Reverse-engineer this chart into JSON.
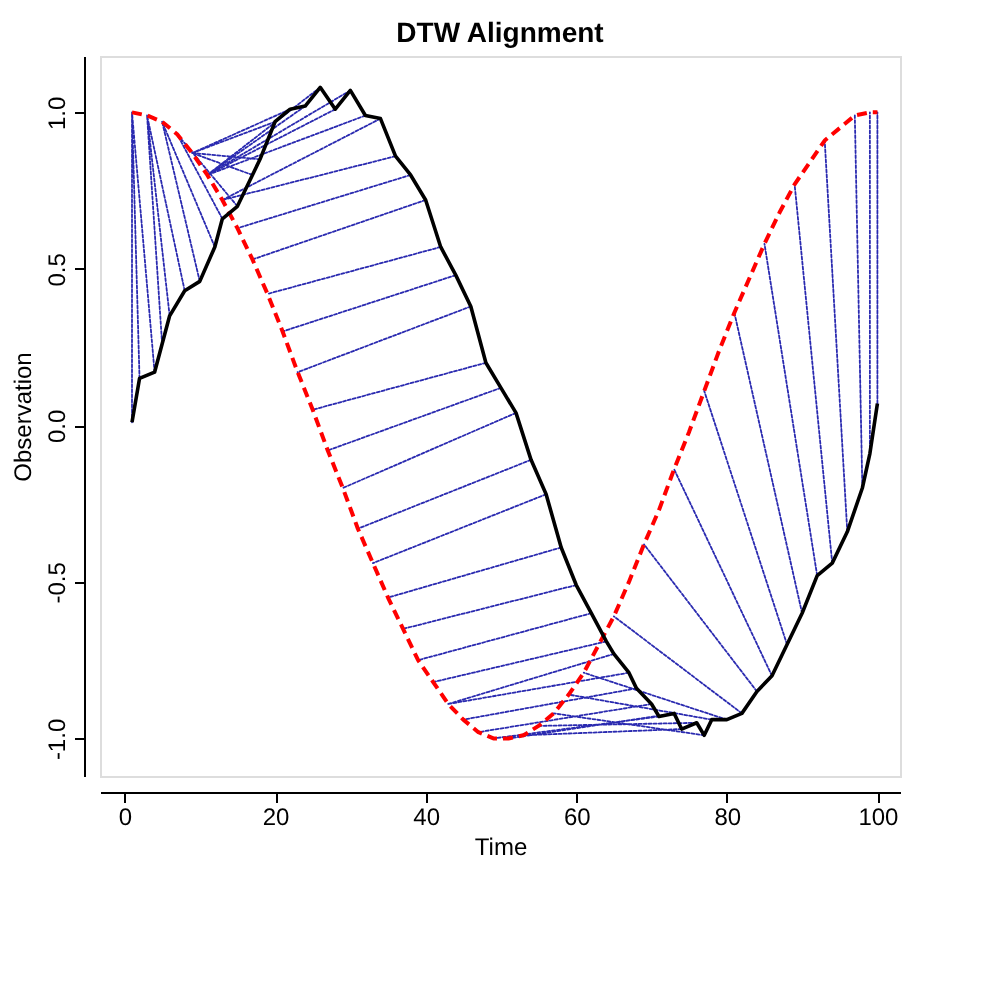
{
  "chart_data": {
    "type": "line",
    "title": "DTW Alignment",
    "xlabel": "Time",
    "ylabel": "Observation",
    "xlim": [
      -3.25,
      103
    ],
    "xticks": [
      0,
      20,
      40,
      60,
      80,
      100
    ],
    "ylim": [
      -1.12,
      1.18
    ],
    "yticks": [
      {
        "value": -1,
        "label": "-1.0"
      },
      {
        "value": -0.5,
        "label": "-0.5"
      },
      {
        "value": 0,
        "label": "0.0"
      },
      {
        "value": 0.5,
        "label": "0.5"
      },
      {
        "value": 1,
        "label": "1.0"
      }
    ],
    "grid": false,
    "series": [
      {
        "line_style": "dotted",
        "color": "#2a2ab0",
        "x": [
          1,
          1,
          null,
          2,
          1,
          null,
          4,
          1,
          null,
          5,
          3,
          null,
          6,
          3,
          null,
          8,
          3,
          null,
          10,
          5,
          null,
          12,
          5,
          null,
          13,
          7,
          null,
          15,
          7,
          null,
          17,
          9,
          null,
          18,
          9,
          null,
          20,
          9,
          null,
          22,
          9,
          null,
          24,
          11,
          null,
          26,
          11,
          null,
          28,
          11,
          null,
          30,
          11,
          null,
          32,
          11,
          null,
          34,
          13,
          null,
          36,
          13,
          null,
          38,
          15,
          null,
          40,
          17,
          null,
          42,
          19,
          null,
          44,
          21,
          null,
          46,
          23,
          null,
          48,
          25,
          null,
          50,
          27,
          null,
          52,
          29,
          null,
          54,
          31,
          null,
          56,
          33,
          null,
          58,
          35,
          null,
          60,
          37,
          null,
          62,
          39,
          null,
          64,
          41,
          null,
          65,
          43,
          null,
          67,
          43,
          null,
          68,
          45,
          null,
          70,
          47,
          null,
          71,
          49,
          null,
          73,
          51,
          null,
          74,
          53,
          null,
          76,
          55,
          null,
          77,
          57,
          null,
          78,
          59,
          null,
          80,
          61,
          null,
          82,
          65,
          null,
          84,
          69,
          null,
          86,
          73,
          null,
          88,
          77,
          null,
          90,
          81,
          null,
          92,
          85,
          null,
          94,
          89,
          null,
          96,
          93,
          null,
          98,
          97,
          null,
          99,
          99,
          null,
          100,
          100
        ],
        "values": [
          0.01,
          1.0,
          null,
          0.15,
          1.0,
          null,
          0.17,
          1.0,
          null,
          0.26,
          0.99,
          null,
          0.35,
          0.99,
          null,
          0.43,
          0.99,
          null,
          0.46,
          0.97,
          null,
          0.57,
          0.97,
          null,
          0.66,
          0.93,
          null,
          0.7,
          0.93,
          null,
          0.8,
          0.87,
          null,
          0.85,
          0.87,
          null,
          0.97,
          0.87,
          null,
          1.01,
          0.87,
          null,
          1.02,
          0.8,
          null,
          1.08,
          0.8,
          null,
          1.01,
          0.8,
          null,
          1.07,
          0.8,
          null,
          0.99,
          0.8,
          null,
          0.98,
          0.72,
          null,
          0.86,
          0.72,
          null,
          0.8,
          0.63,
          null,
          0.72,
          0.53,
          null,
          0.57,
          0.42,
          null,
          0.48,
          0.3,
          null,
          0.38,
          0.17,
          null,
          0.2,
          0.05,
          null,
          0.12,
          -0.08,
          null,
          0.04,
          -0.2,
          null,
          -0.11,
          -0.33,
          null,
          -0.22,
          -0.44,
          null,
          -0.39,
          -0.55,
          null,
          -0.51,
          -0.65,
          null,
          -0.6,
          -0.75,
          null,
          -0.69,
          -0.82,
          null,
          -0.73,
          -0.89,
          null,
          -0.79,
          -0.89,
          null,
          -0.84,
          -0.94,
          null,
          -0.89,
          -0.98,
          null,
          -0.93,
          -1.0,
          null,
          -0.92,
          -1.0,
          null,
          -0.97,
          -0.99,
          null,
          -0.95,
          -0.96,
          null,
          -0.99,
          -0.92,
          null,
          -0.94,
          -0.86,
          null,
          -0.94,
          -0.79,
          null,
          -0.92,
          -0.61,
          null,
          -0.85,
          -0.38,
          null,
          -0.8,
          -0.14,
          null,
          -0.7,
          0.11,
          null,
          -0.6,
          0.36,
          null,
          -0.48,
          0.58,
          null,
          -0.44,
          0.77,
          null,
          -0.34,
          0.91,
          null,
          -0.2,
          0.99,
          null,
          -0.09,
          1.0,
          null,
          0.07,
          1.0
        ]
      },
      {
        "line_style": "dashed",
        "color": "#ff0000",
        "x": [
          1,
          3,
          5,
          7,
          9,
          11,
          13,
          15,
          17,
          19,
          21,
          23,
          25,
          27,
          29,
          31,
          33,
          35,
          37,
          39,
          41,
          43,
          45,
          47,
          49,
          51,
          53,
          55,
          57,
          59,
          61,
          63,
          65,
          67,
          69,
          71,
          73,
          75,
          77,
          79,
          81,
          83,
          85,
          87,
          89,
          91,
          93,
          95,
          97,
          99,
          100
        ],
        "values": [
          1.0,
          0.99,
          0.97,
          0.93,
          0.87,
          0.8,
          0.72,
          0.63,
          0.53,
          0.42,
          0.3,
          0.17,
          0.05,
          -0.08,
          -0.2,
          -0.33,
          -0.44,
          -0.55,
          -0.65,
          -0.75,
          -0.82,
          -0.89,
          -0.94,
          -0.98,
          -1.0,
          -1.0,
          -0.99,
          -0.96,
          -0.92,
          -0.86,
          -0.79,
          -0.7,
          -0.61,
          -0.5,
          -0.38,
          -0.27,
          -0.14,
          -0.02,
          0.11,
          0.24,
          0.36,
          0.47,
          0.58,
          0.68,
          0.77,
          0.84,
          0.91,
          0.95,
          0.99,
          1.0,
          1.0
        ]
      },
      {
        "line_style": "solid",
        "color": "#000000",
        "x": [
          1,
          2,
          4,
          5,
          6,
          8,
          10,
          12,
          13,
          15,
          17,
          18,
          20,
          22,
          24,
          26,
          28,
          30,
          32,
          34,
          36,
          38,
          40,
          42,
          44,
          46,
          48,
          50,
          52,
          54,
          56,
          58,
          60,
          62,
          64,
          65,
          67,
          68,
          70,
          71,
          73,
          74,
          76,
          77,
          78,
          80,
          82,
          84,
          86,
          88,
          90,
          92,
          94,
          96,
          98,
          99,
          100
        ],
        "values": [
          0.01,
          0.15,
          0.17,
          0.26,
          0.35,
          0.43,
          0.46,
          0.57,
          0.66,
          0.7,
          0.8,
          0.85,
          0.97,
          1.01,
          1.02,
          1.08,
          1.01,
          1.07,
          0.99,
          0.98,
          0.86,
          0.8,
          0.72,
          0.57,
          0.48,
          0.38,
          0.2,
          0.12,
          0.04,
          -0.11,
          -0.22,
          -0.39,
          -0.51,
          -0.6,
          -0.69,
          -0.73,
          -0.79,
          -0.84,
          -0.89,
          -0.93,
          -0.92,
          -0.97,
          -0.95,
          -0.99,
          -0.94,
          -0.94,
          -0.92,
          -0.85,
          -0.8,
          -0.7,
          -0.6,
          -0.48,
          -0.44,
          -0.34,
          -0.2,
          -0.09,
          0.07
        ]
      }
    ]
  }
}
